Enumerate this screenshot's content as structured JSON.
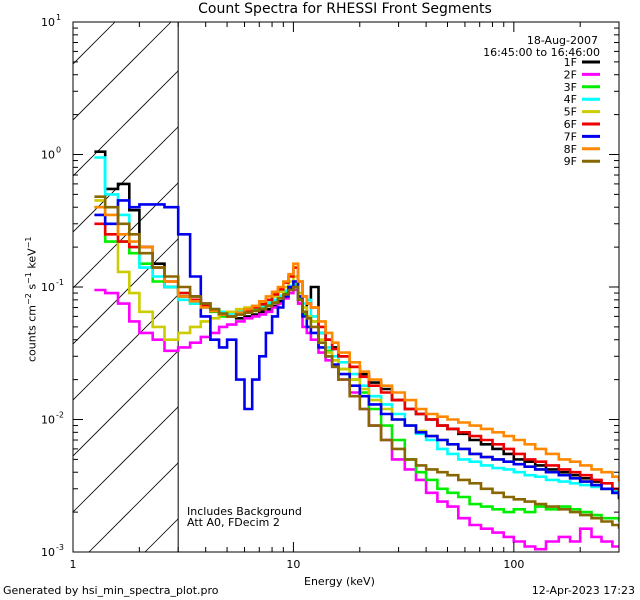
{
  "chart_data": {
    "type": "line",
    "title": "Count Spectra for RHESSI Front Segments",
    "xlabel": "Energy (keV)",
    "ylabel": "counts cm^-2 s^-1 keV^-1",
    "xscale": "log",
    "yscale": "log",
    "xlim": [
      1,
      300
    ],
    "ylim": [
      0.001,
      10
    ],
    "x_ticks": [
      "1",
      "10",
      "100"
    ],
    "y_ticks": [
      {
        "base": "10",
        "exp": "1"
      },
      {
        "base": "10",
        "exp": "0"
      },
      {
        "base": "10",
        "exp": "-1"
      },
      {
        "base": "10",
        "exp": "-2"
      },
      {
        "base": "10",
        "exp": "-3"
      }
    ],
    "attenuator_cutoff_kev": 3,
    "date": "18-Aug-2007",
    "time_range": "16:45:00 to 16:46:00",
    "annotations": [
      "Includes Background",
      "Att A0, FDecim 2"
    ],
    "series": [
      {
        "name": "1F",
        "color": "#000000",
        "x": [
          1.25,
          1.4,
          1.6,
          1.8,
          2.0,
          2.3,
          2.6,
          3.0,
          3.4,
          3.8,
          4.2,
          4.6,
          5.0,
          5.5,
          6,
          6.5,
          7,
          7.5,
          8,
          8.5,
          9,
          9.5,
          10,
          10.5,
          11,
          11.5,
          12,
          13,
          14,
          15,
          16,
          18,
          20,
          22,
          25,
          28,
          32,
          36,
          40,
          45,
          50,
          56,
          63,
          71,
          80,
          90,
          100,
          112,
          125,
          140,
          160,
          180,
          200,
          225,
          250,
          280,
          300
        ],
        "y": [
          1.05,
          0.55,
          0.6,
          0.38,
          0.2,
          0.15,
          0.1,
          0.085,
          0.085,
          0.075,
          0.068,
          0.062,
          0.06,
          0.058,
          0.06,
          0.062,
          0.065,
          0.068,
          0.072,
          0.078,
          0.088,
          0.098,
          0.1,
          0.08,
          0.065,
          0.075,
          0.1,
          0.045,
          0.04,
          0.035,
          0.03,
          0.025,
          0.022,
          0.019,
          0.017,
          0.014,
          0.012,
          0.011,
          0.01,
          0.009,
          0.0085,
          0.0078,
          0.007,
          0.0065,
          0.006,
          0.0055,
          0.005,
          0.0048,
          0.0045,
          0.0042,
          0.004,
          0.0038,
          0.0036,
          0.0034,
          0.003,
          0.0028,
          0.0025
        ]
      },
      {
        "name": "2F",
        "color": "#ff00ff",
        "x": [
          1.25,
          1.4,
          1.6,
          1.8,
          2.0,
          2.3,
          2.6,
          3.0,
          3.4,
          3.8,
          4.2,
          4.6,
          5.0,
          5.5,
          6,
          6.5,
          7,
          7.5,
          8,
          8.5,
          9,
          9.5,
          10,
          10.5,
          11,
          11.5,
          12,
          13,
          14,
          15,
          16,
          18,
          20,
          22,
          25,
          28,
          32,
          36,
          40,
          45,
          50,
          56,
          63,
          71,
          80,
          90,
          100,
          112,
          125,
          140,
          160,
          180,
          200,
          225,
          250,
          280,
          300
        ],
        "y": [
          0.095,
          0.09,
          0.075,
          0.055,
          0.045,
          0.04,
          0.033,
          0.035,
          0.038,
          0.042,
          0.045,
          0.05,
          0.052,
          0.055,
          0.058,
          0.06,
          0.062,
          0.065,
          0.07,
          0.075,
          0.082,
          0.09,
          0.095,
          0.075,
          0.05,
          0.045,
          0.04,
          0.032,
          0.028,
          0.025,
          0.02,
          0.016,
          0.012,
          0.009,
          0.007,
          0.005,
          0.0042,
          0.0035,
          0.0028,
          0.0024,
          0.0022,
          0.0018,
          0.0016,
          0.0015,
          0.0014,
          0.0013,
          0.0012,
          0.0011,
          0.00105,
          0.0012,
          0.0013,
          0.0012,
          0.0015,
          0.0013,
          0.0012,
          0.0011,
          0.0011
        ]
      },
      {
        "name": "3F",
        "color": "#00ee00",
        "x": [
          1.25,
          1.4,
          1.6,
          1.8,
          2.0,
          2.3,
          2.6,
          3.0,
          3.4,
          3.8,
          4.2,
          4.6,
          5.0,
          5.5,
          6,
          6.5,
          7,
          7.5,
          8,
          8.5,
          9,
          9.5,
          10,
          10.5,
          11,
          11.5,
          12,
          13,
          14,
          15,
          16,
          18,
          20,
          22,
          25,
          28,
          32,
          36,
          40,
          45,
          50,
          56,
          63,
          71,
          80,
          90,
          100,
          112,
          125,
          140,
          160,
          180,
          200,
          225,
          250,
          280,
          300
        ],
        "y": [
          0.4,
          0.22,
          0.22,
          0.18,
          0.15,
          0.11,
          0.1,
          0.09,
          0.075,
          0.07,
          0.065,
          0.06,
          0.06,
          0.062,
          0.065,
          0.067,
          0.07,
          0.074,
          0.078,
          0.085,
          0.092,
          0.1,
          0.105,
          0.082,
          0.062,
          0.06,
          0.055,
          0.04,
          0.033,
          0.028,
          0.024,
          0.02,
          0.016,
          0.012,
          0.009,
          0.007,
          0.005,
          0.004,
          0.0035,
          0.003,
          0.0028,
          0.0026,
          0.0023,
          0.0022,
          0.0021,
          0.002,
          0.0021,
          0.002,
          0.0022,
          0.0021,
          0.0022,
          0.0021,
          0.002,
          0.0019,
          0.0018,
          0.0018,
          0.0017
        ]
      },
      {
        "name": "4F",
        "color": "#00ffff",
        "x": [
          1.25,
          1.4,
          1.6,
          1.8,
          2.0,
          2.3,
          2.6,
          3.0,
          3.4,
          3.8,
          4.2,
          4.6,
          5.0,
          5.5,
          6,
          6.5,
          7,
          7.5,
          8,
          8.5,
          9,
          9.5,
          10,
          10.5,
          11,
          11.5,
          12,
          13,
          14,
          15,
          16,
          18,
          20,
          22,
          25,
          28,
          32,
          36,
          40,
          45,
          50,
          56,
          63,
          71,
          80,
          90,
          100,
          112,
          125,
          140,
          160,
          180,
          200,
          225,
          250,
          280,
          300
        ],
        "y": [
          0.95,
          0.5,
          0.35,
          0.2,
          0.14,
          0.12,
          0.1,
          0.08,
          0.075,
          0.07,
          0.068,
          0.065,
          0.063,
          0.065,
          0.068,
          0.07,
          0.072,
          0.076,
          0.08,
          0.086,
          0.094,
          0.102,
          0.11,
          0.085,
          0.075,
          0.08,
          0.06,
          0.045,
          0.035,
          0.03,
          0.027,
          0.022,
          0.018,
          0.015,
          0.013,
          0.011,
          0.009,
          0.0078,
          0.007,
          0.006,
          0.0055,
          0.005,
          0.0048,
          0.0045,
          0.0043,
          0.0042,
          0.004,
          0.0038,
          0.0037,
          0.0035,
          0.0034,
          0.0033,
          0.0032,
          0.0031,
          0.003,
          0.0029,
          0.0028
        ]
      },
      {
        "name": "5F",
        "color": "#cccc00",
        "x": [
          1.25,
          1.4,
          1.6,
          1.8,
          2.0,
          2.3,
          2.6,
          3.0,
          3.4,
          3.8,
          4.2,
          4.6,
          5.0,
          5.5,
          6,
          6.5,
          7,
          7.5,
          8,
          8.5,
          9,
          9.5,
          10,
          10.5,
          11,
          11.5,
          12,
          13,
          14,
          15,
          16,
          18,
          20,
          22,
          25,
          28,
          32,
          36,
          40,
          45,
          50,
          56,
          63,
          71,
          80,
          90,
          100,
          112,
          125,
          140,
          160,
          180,
          200,
          225,
          250,
          280,
          300
        ],
        "y": [
          0.45,
          0.3,
          0.13,
          0.09,
          0.065,
          0.05,
          0.04,
          0.045,
          0.05,
          0.055,
          0.058,
          0.062,
          0.065,
          0.068,
          0.07,
          0.072,
          0.075,
          0.08,
          0.085,
          0.092,
          0.1,
          0.11,
          0.12,
          0.09,
          0.07,
          0.06,
          0.055,
          0.04,
          0.032,
          0.028,
          0.024,
          0.02,
          0.017,
          0.014,
          0.012,
          0.01,
          0.009,
          0.0082,
          0.0075,
          0.007,
          0.0065,
          0.006,
          0.0055,
          0.0052,
          0.005,
          0.0048,
          0.0046,
          0.0044,
          0.0042,
          0.004,
          0.0038,
          0.0036,
          0.0034,
          0.0032,
          0.003,
          0.0028,
          0.0027
        ]
      },
      {
        "name": "6F",
        "color": "#ee0000",
        "x": [
          1.25,
          1.4,
          1.6,
          1.8,
          2.0,
          2.3,
          2.6,
          3.0,
          3.4,
          3.8,
          4.2,
          4.6,
          5.0,
          5.5,
          6,
          6.5,
          7,
          7.5,
          8,
          8.5,
          9,
          9.5,
          10,
          10.5,
          11,
          11.5,
          12,
          13,
          14,
          15,
          16,
          18,
          20,
          22,
          25,
          28,
          32,
          36,
          40,
          45,
          50,
          56,
          63,
          71,
          80,
          90,
          100,
          112,
          125,
          140,
          160,
          180,
          200,
          225,
          250,
          280,
          300
        ],
        "y": [
          0.3,
          0.25,
          0.22,
          0.2,
          0.2,
          0.14,
          0.11,
          0.09,
          0.08,
          0.072,
          0.066,
          0.062,
          0.06,
          0.062,
          0.066,
          0.07,
          0.074,
          0.08,
          0.088,
          0.096,
          0.108,
          0.12,
          0.14,
          0.11,
          0.085,
          0.075,
          0.07,
          0.05,
          0.04,
          0.034,
          0.03,
          0.025,
          0.021,
          0.018,
          0.016,
          0.014,
          0.012,
          0.011,
          0.01,
          0.009,
          0.0085,
          0.008,
          0.0075,
          0.007,
          0.0065,
          0.006,
          0.0055,
          0.005,
          0.0048,
          0.0045,
          0.0042,
          0.004,
          0.0038,
          0.0035,
          0.0033,
          0.003,
          0.0028
        ]
      },
      {
        "name": "7F",
        "color": "#0000ee",
        "x": [
          1.25,
          1.4,
          1.6,
          1.8,
          2.0,
          2.3,
          2.6,
          3.0,
          3.4,
          3.8,
          4.2,
          4.6,
          5.0,
          5.5,
          6,
          6.5,
          7,
          7.5,
          8,
          8.5,
          9,
          9.5,
          10,
          10.5,
          11,
          11.5,
          12,
          13,
          14,
          15,
          16,
          18,
          20,
          22,
          25,
          28,
          32,
          36,
          40,
          45,
          50,
          56,
          63,
          71,
          80,
          90,
          100,
          112,
          125,
          140,
          160,
          180,
          200,
          225,
          250,
          280,
          300
        ],
        "y": [
          0.35,
          0.3,
          0.45,
          0.4,
          0.42,
          0.42,
          0.4,
          0.25,
          0.12,
          0.06,
          0.04,
          0.035,
          0.04,
          0.02,
          0.012,
          0.02,
          0.03,
          0.045,
          0.06,
          0.07,
          0.085,
          0.1,
          0.11,
          0.085,
          0.06,
          0.05,
          0.045,
          0.035,
          0.03,
          0.026,
          0.022,
          0.018,
          0.015,
          0.013,
          0.011,
          0.01,
          0.009,
          0.008,
          0.0075,
          0.007,
          0.0065,
          0.006,
          0.0055,
          0.0052,
          0.005,
          0.0048,
          0.0046,
          0.0044,
          0.0042,
          0.004,
          0.0038,
          0.0036,
          0.0034,
          0.0032,
          0.003,
          0.0028,
          0.0026
        ]
      },
      {
        "name": "8F",
        "color": "#ff8800",
        "x": [
          1.25,
          1.4,
          1.6,
          1.8,
          2.0,
          2.3,
          2.6,
          3.0,
          3.4,
          3.8,
          4.2,
          4.6,
          5.0,
          5.5,
          6,
          6.5,
          7,
          7.5,
          8,
          8.5,
          9,
          9.5,
          10,
          10.5,
          11,
          11.5,
          12,
          13,
          14,
          15,
          16,
          18,
          20,
          22,
          25,
          28,
          32,
          36,
          40,
          45,
          50,
          56,
          63,
          71,
          80,
          90,
          100,
          112,
          125,
          140,
          160,
          180,
          200,
          225,
          250,
          280,
          300
        ],
        "y": [
          0.4,
          0.35,
          0.25,
          0.22,
          0.2,
          0.14,
          0.11,
          0.085,
          0.078,
          0.07,
          0.066,
          0.062,
          0.06,
          0.064,
          0.068,
          0.072,
          0.078,
          0.085,
          0.092,
          0.1,
          0.11,
          0.125,
          0.15,
          0.11,
          0.085,
          0.075,
          0.07,
          0.055,
          0.045,
          0.038,
          0.032,
          0.027,
          0.023,
          0.02,
          0.018,
          0.016,
          0.014,
          0.012,
          0.011,
          0.0105,
          0.01,
          0.0095,
          0.009,
          0.0085,
          0.008,
          0.0075,
          0.007,
          0.0065,
          0.006,
          0.0055,
          0.005,
          0.0048,
          0.0045,
          0.0042,
          0.004,
          0.0037,
          0.0034
        ]
      },
      {
        "name": "9F",
        "color": "#886600",
        "x": [
          1.25,
          1.4,
          1.6,
          1.8,
          2.0,
          2.3,
          2.6,
          3.0,
          3.4,
          3.8,
          4.2,
          4.6,
          5.0,
          5.5,
          6,
          6.5,
          7,
          7.5,
          8,
          8.5,
          9,
          9.5,
          10,
          10.5,
          11,
          11.5,
          12,
          13,
          14,
          15,
          16,
          18,
          20,
          22,
          25,
          28,
          32,
          36,
          40,
          45,
          50,
          56,
          63,
          71,
          80,
          90,
          100,
          112,
          125,
          140,
          160,
          180,
          200,
          225,
          250,
          280,
          300
        ],
        "y": [
          0.48,
          0.4,
          0.3,
          0.25,
          0.18,
          0.14,
          0.12,
          0.1,
          0.085,
          0.075,
          0.068,
          0.063,
          0.06,
          0.062,
          0.064,
          0.066,
          0.068,
          0.072,
          0.076,
          0.082,
          0.088,
          0.095,
          0.1,
          0.08,
          0.065,
          0.058,
          0.05,
          0.038,
          0.03,
          0.025,
          0.02,
          0.015,
          0.012,
          0.009,
          0.007,
          0.006,
          0.005,
          0.0045,
          0.0042,
          0.004,
          0.0038,
          0.0035,
          0.0033,
          0.003,
          0.0028,
          0.0026,
          0.0025,
          0.0024,
          0.0023,
          0.0022,
          0.0021,
          0.002,
          0.0019,
          0.0018,
          0.0017,
          0.0016,
          0.0015
        ]
      }
    ]
  },
  "footer": {
    "generated_by": "Generated by hsi_min_spectra_plot.pro",
    "timestamp": "12-Apr-2023 17:23"
  }
}
